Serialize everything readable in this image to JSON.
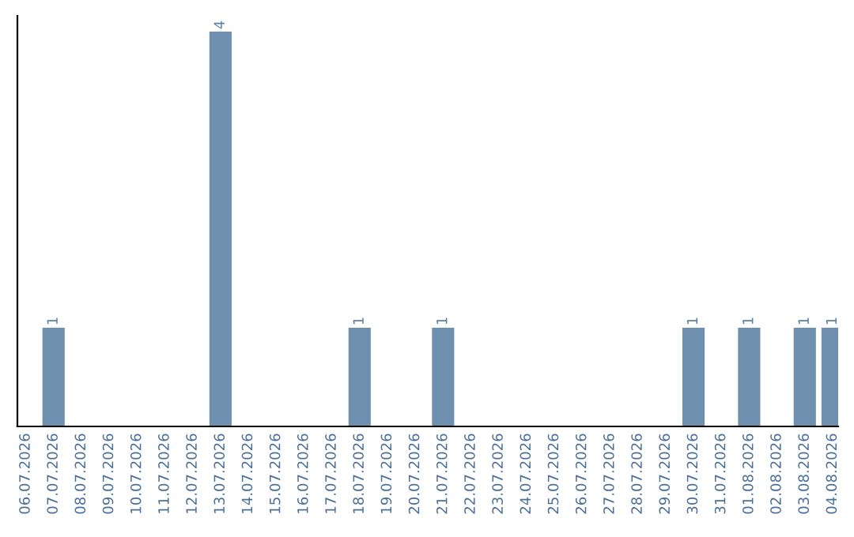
{
  "chart_data": {
    "type": "bar",
    "categories": [
      "06.07.2026",
      "07.07.2026",
      "08.07.2026",
      "09.07.2026",
      "10.07.2026",
      "11.07.2026",
      "12.07.2026",
      "13.07.2026",
      "14.07.2026",
      "15.07.2026",
      "16.07.2026",
      "17.07.2026",
      "18.07.2026",
      "19.07.2026",
      "20.07.2026",
      "21.07.2026",
      "22.07.2026",
      "23.07.2026",
      "24.07.2026",
      "25.07.2026",
      "26.07.2026",
      "27.07.2026",
      "28.07.2026",
      "29.07.2026",
      "30.07.2026",
      "31.07.2026",
      "01.08.2026",
      "02.08.2026",
      "03.08.2026",
      "04.08.2026"
    ],
    "values": [
      0,
      1,
      0,
      0,
      0,
      0,
      0,
      4,
      0,
      0,
      0,
      0,
      1,
      0,
      0,
      1,
      0,
      0,
      0,
      0,
      0,
      0,
      0,
      0,
      1,
      0,
      1,
      0,
      1,
      1
    ],
    "value_labels": [
      null,
      "1",
      null,
      null,
      null,
      null,
      null,
      "4",
      null,
      null,
      null,
      null,
      "1",
      null,
      null,
      "1",
      null,
      null,
      null,
      null,
      null,
      null,
      null,
      null,
      "1",
      null,
      "1",
      null,
      "1",
      "1"
    ],
    "color": "#6f8fae",
    "grid": false,
    "legend": false
  }
}
